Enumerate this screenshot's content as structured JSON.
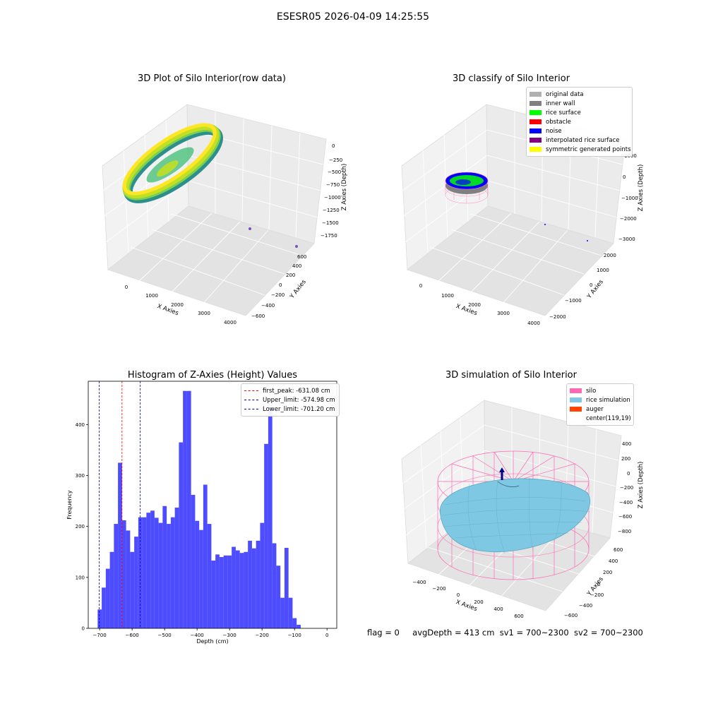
{
  "figure": {
    "suptitle": "ESESR05 2026-04-09 14:25:55"
  },
  "chart_data": [
    {
      "type": "scatter",
      "title": "3D Plot of Silo Interior(row data)",
      "xlabel": "X Axies",
      "ylabel": "Y Axies",
      "zlabel": "Z Axies (Depth)",
      "xticks": [
        "0",
        "1000",
        "2000",
        "3000",
        "4000"
      ],
      "yticks": [
        "−600",
        "−400",
        "−200",
        "0",
        "200",
        "400",
        "600"
      ],
      "zticks": [
        "0",
        "−250",
        "−500",
        "−750",
        "−1000",
        "−1250",
        "−1500",
        "−1750"
      ],
      "colormap": [
        "#2c8f8c",
        "#3fbc73",
        "#7ad151",
        "#c2df23",
        "#fde725"
      ]
    },
    {
      "type": "scatter",
      "title": "3D classify of Silo Interior",
      "xlabel": "X Axies",
      "ylabel": "Y Axies",
      "zlabel": "Z Axies (Depth)",
      "xticks": [
        "0",
        "1000",
        "2000",
        "3000",
        "4000"
      ],
      "yticks": [
        "−2000",
        "−1000",
        "0",
        "1000",
        "2000"
      ],
      "zticks": [
        "1000",
        "0",
        "−1000",
        "−2000",
        "−3000"
      ],
      "legend": [
        {
          "label": "original data",
          "color": "#b0b0b0"
        },
        {
          "label": "inner wall",
          "color": "#808080"
        },
        {
          "label": "rice surface",
          "color": "#00ff00"
        },
        {
          "label": "obstacle",
          "color": "#ff0000"
        },
        {
          "label": "noise",
          "color": "#0000ff"
        },
        {
          "label": "interpolated rice surface",
          "color": "#800080"
        },
        {
          "label": "symmetric generated points",
          "color": "#ffff00"
        }
      ]
    },
    {
      "type": "bar",
      "title": "Histogram of Z-Axies (Height) Values",
      "xlabel": "Depth (cm)",
      "ylabel": "Frequency",
      "xlim": [
        -735,
        30
      ],
      "ylim": [
        0,
        485
      ],
      "xticks": [
        -700,
        -600,
        -500,
        -400,
        -300,
        -200,
        -100,
        0
      ],
      "yticks": [
        0,
        100,
        200,
        300,
        400
      ],
      "bin_width": 12.5,
      "bin_start": -706,
      "values": [
        37,
        80,
        117,
        150,
        205,
        325,
        212,
        192,
        150,
        180,
        218,
        218,
        227,
        231,
        217,
        207,
        240,
        205,
        218,
        237,
        365,
        466,
        466,
        262,
        211,
        193,
        282,
        205,
        133,
        145,
        140,
        143,
        143,
        160,
        153,
        148,
        150,
        172,
        157,
        172,
        207,
        362,
        432,
        167,
        123,
        60,
        158,
        60,
        20,
        7
      ],
      "bar_color": "#4d4dff",
      "vlines": [
        {
          "value": -631.08,
          "label": "first_peak: -631.08 cm",
          "color": "#ff0000"
        },
        {
          "value": -574.98,
          "label": "Upper_limit: -574.98 cm",
          "color": "#0000cc"
        },
        {
          "value": -701.2,
          "label": "Lower_limit: -701.20 cm",
          "color": "#0000cc"
        }
      ],
      "legend_position": "top-right"
    },
    {
      "type": "surface",
      "title": "3D simulation of Silo Interior",
      "xlabel": "X Axies",
      "ylabel": "Y Axies",
      "zlabel": "Z Axies (Depth)",
      "xticks": [
        "−400",
        "−200",
        "0",
        "200",
        "400",
        "600"
      ],
      "yticks": [
        "−600",
        "−400",
        "−200",
        "0",
        "200",
        "400",
        "600"
      ],
      "zticks": [
        "400",
        "200",
        "0",
        "−200",
        "−400",
        "−600",
        "−800"
      ],
      "legend": [
        {
          "label": "silo",
          "color": "#ff69b4"
        },
        {
          "label": "rice simulation",
          "color": "#7ec8e3"
        },
        {
          "label": "auger",
          "color": "#ff4500"
        },
        {
          "label": "center(119,19)",
          "color": ""
        }
      ]
    }
  ],
  "status": {
    "flag": "flag = 0",
    "avg_depth": "avgDepth = 413 cm",
    "sv1": "sv1 = 700~2300",
    "sv2": "sv2 = 700~2300"
  }
}
